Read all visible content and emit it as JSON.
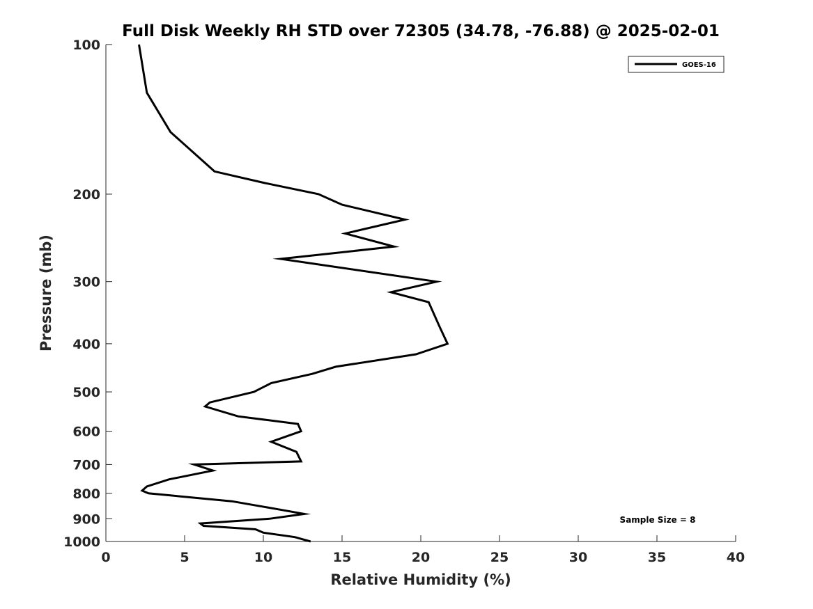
{
  "chart_data": {
    "type": "line",
    "title": "Full Disk Weekly RH STD over 72305 (34.78, -76.88) @ 2025-02-01",
    "xlabel": "Relative Humidity (%)",
    "ylabel": "Pressure (mb)",
    "xlim": [
      0,
      40
    ],
    "ylim": [
      1000,
      100
    ],
    "yscale": "log",
    "y_reversed": true,
    "grid": false,
    "legend_position": "top-right",
    "x_ticks": [
      "0",
      "5",
      "10",
      "15",
      "20",
      "25",
      "30",
      "35",
      "40"
    ],
    "y_ticks": [
      "100",
      "200",
      "300",
      "400",
      "500",
      "600",
      "700",
      "800",
      "900",
      "1000"
    ],
    "annotation": "Sample Size = 8",
    "series": [
      {
        "name": "GOES-16",
        "color": "#000000",
        "points": [
          [
            2.1,
            100
          ],
          [
            2.6,
            125
          ],
          [
            4.1,
            150
          ],
          [
            6.9,
            180
          ],
          [
            10.1,
            190
          ],
          [
            13.5,
            200
          ],
          [
            15.0,
            210
          ],
          [
            19.0,
            225
          ],
          [
            15.2,
            240
          ],
          [
            18.3,
            255
          ],
          [
            11.1,
            270
          ],
          [
            21.0,
            300
          ],
          [
            18.1,
            315
          ],
          [
            20.5,
            330
          ],
          [
            21.2,
            370
          ],
          [
            21.7,
            400
          ],
          [
            19.7,
            420
          ],
          [
            14.6,
            445
          ],
          [
            13.1,
            460
          ],
          [
            10.5,
            480
          ],
          [
            9.4,
            500
          ],
          [
            6.6,
            525
          ],
          [
            6.3,
            535
          ],
          [
            8.4,
            560
          ],
          [
            12.2,
            580
          ],
          [
            12.4,
            600
          ],
          [
            10.5,
            630
          ],
          [
            12.1,
            660
          ],
          [
            12.4,
            690
          ],
          [
            5.6,
            700
          ],
          [
            6.8,
            720
          ],
          [
            4.0,
            750
          ],
          [
            2.6,
            775
          ],
          [
            2.3,
            790
          ],
          [
            2.7,
            800
          ],
          [
            8.0,
            830
          ],
          [
            10.8,
            860
          ],
          [
            12.6,
            880
          ],
          [
            10.4,
            900
          ],
          [
            6.0,
            920
          ],
          [
            6.2,
            930
          ],
          [
            9.5,
            945
          ],
          [
            10.0,
            960
          ],
          [
            12.0,
            980
          ],
          [
            13.0,
            1000
          ]
        ]
      }
    ]
  }
}
